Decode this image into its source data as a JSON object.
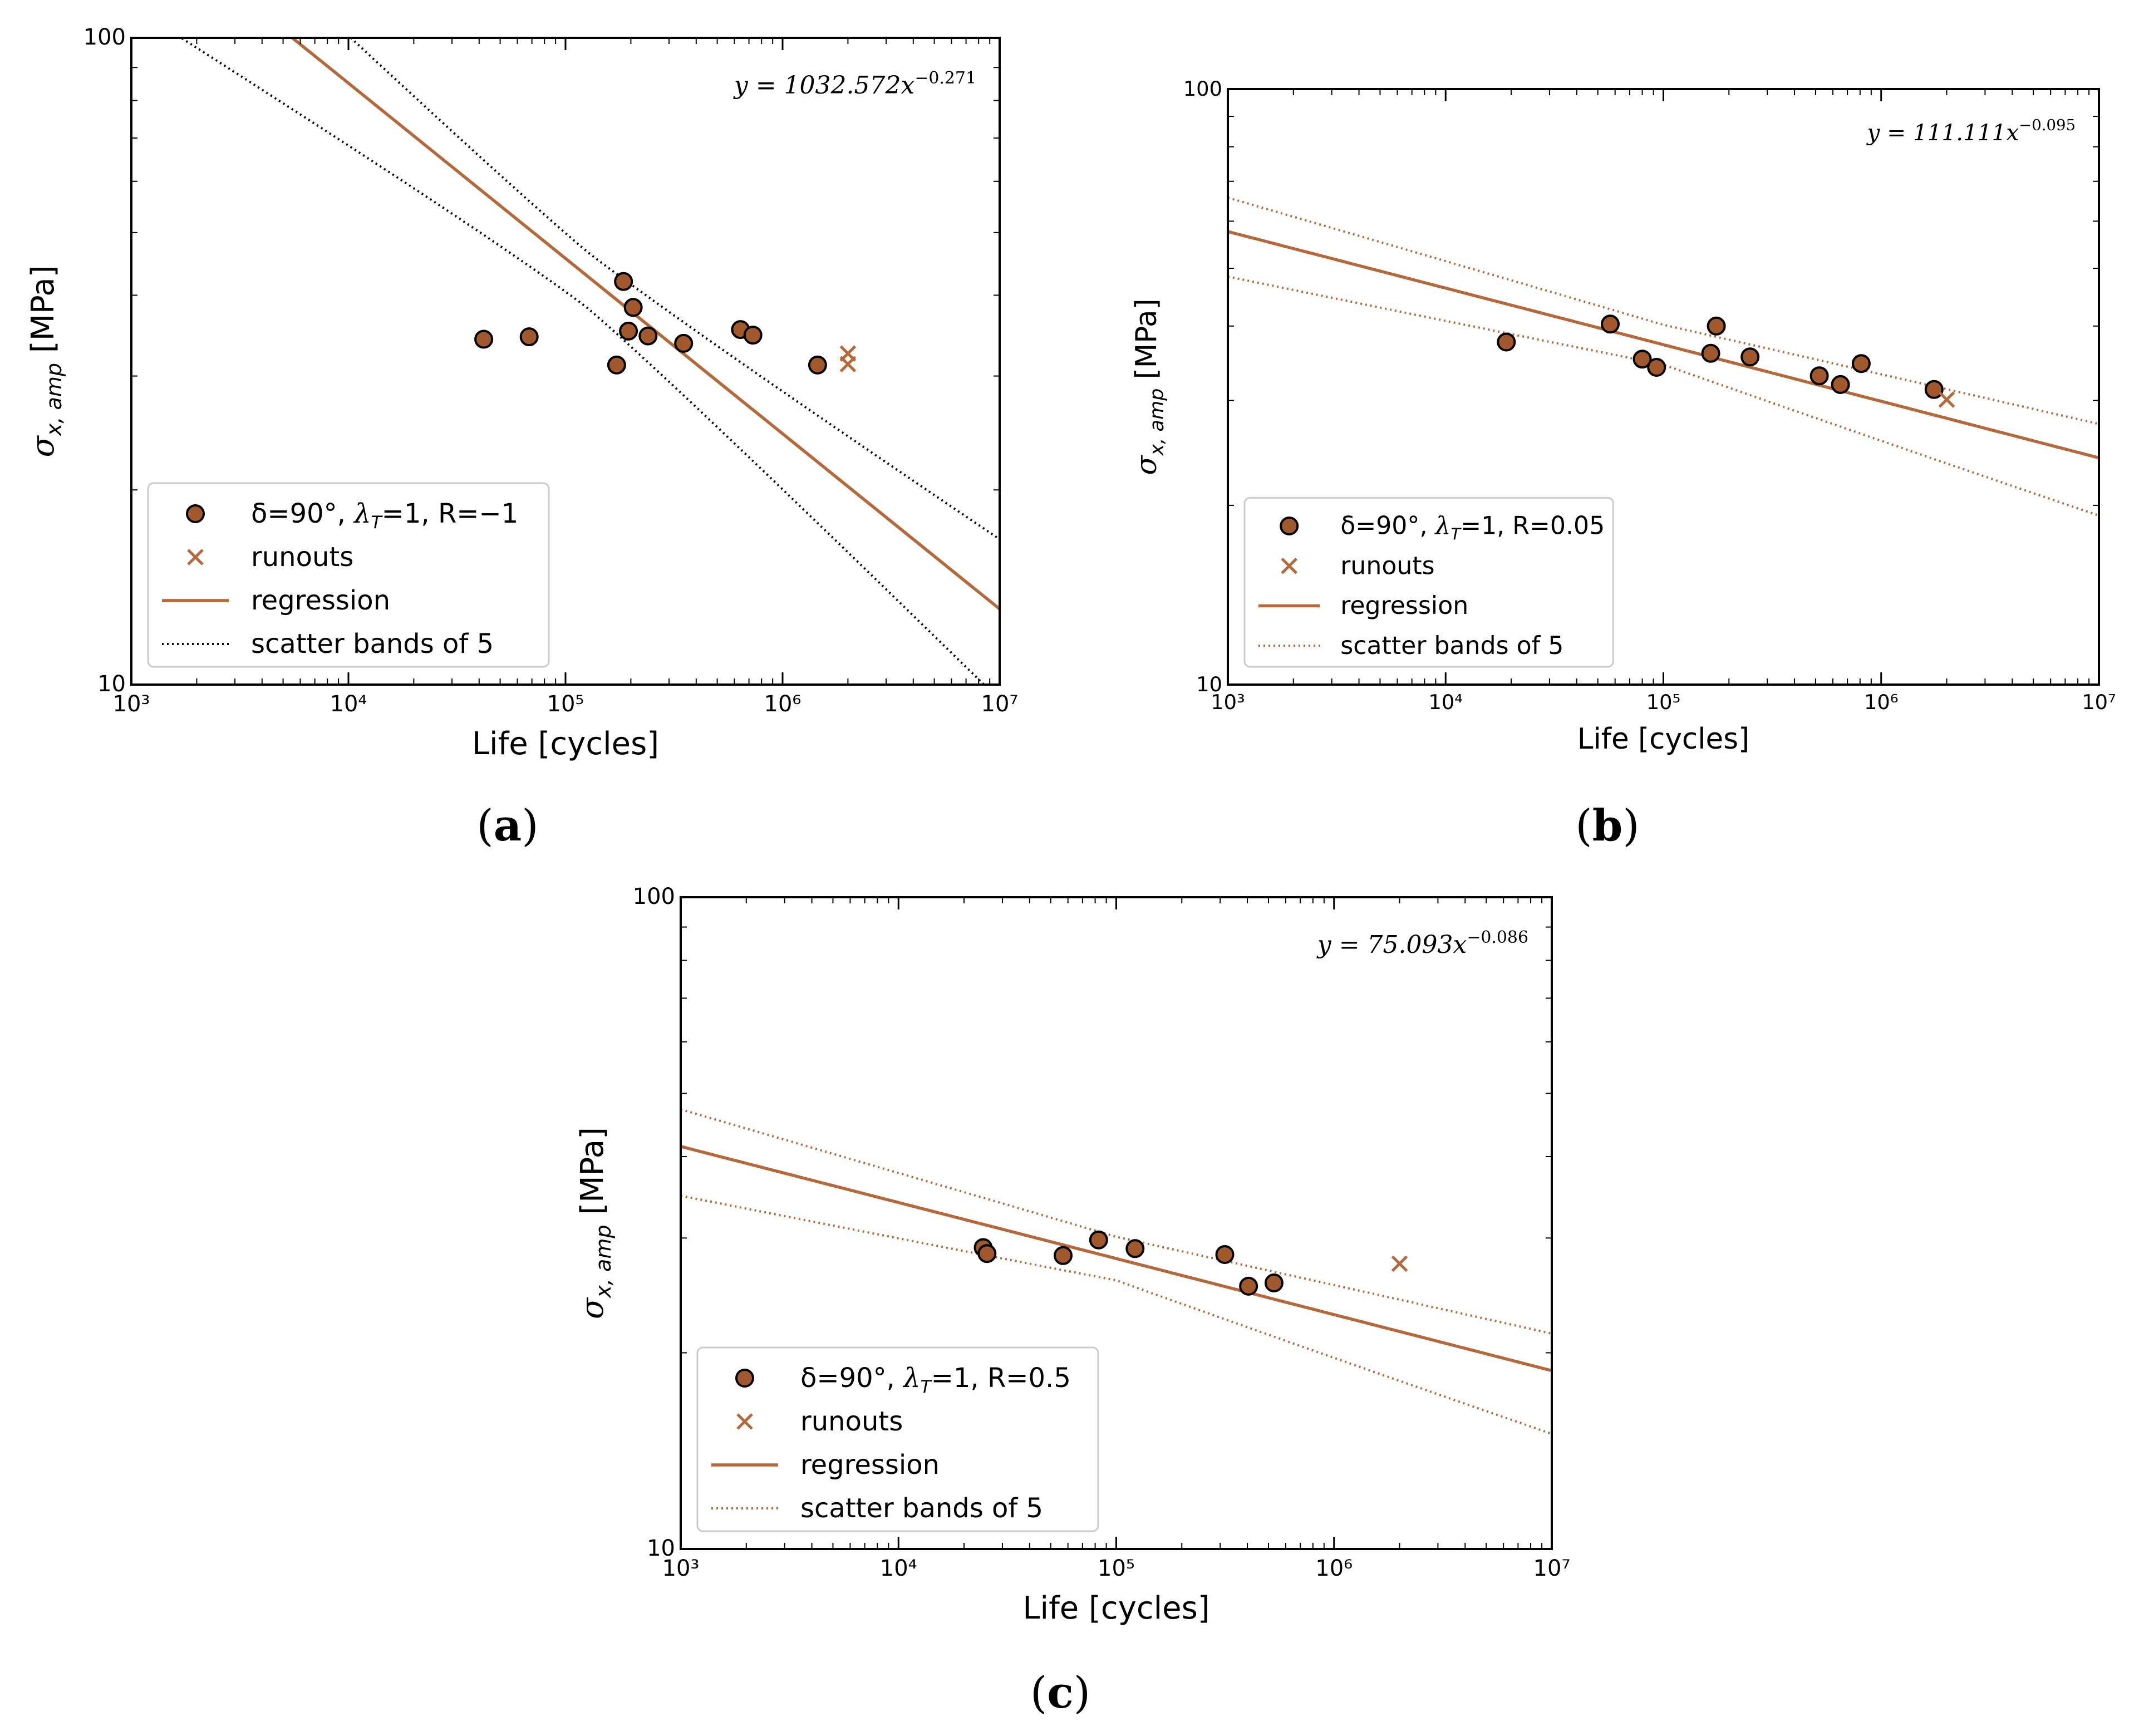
{
  "figure": {
    "panel_labels": [
      "(a)",
      "(b)",
      "(c)"
    ]
  },
  "colors": {
    "brown": "#b5693a",
    "brown_marker_fill": "#a0582c",
    "black": "#000000"
  },
  "chart_data": [
    {
      "type": "scatter",
      "id": "a",
      "xscale": "log",
      "yscale": "log",
      "xlim": [
        1000,
        10000000
      ],
      "ylim": [
        10,
        100
      ],
      "xlabel": "Life [cycles]",
      "ylabel": "σx, amp [MPa]",
      "ylabel_main": "σ",
      "ylabel_sub": "x, amp",
      "ylabel_unit": " [MPa]",
      "x_tick_labels": [
        "10³",
        "10⁴",
        "10⁵",
        "10⁶",
        "10⁷"
      ],
      "y_tick_labels": [
        "10",
        "100"
      ],
      "equation": {
        "lhs": "y = 1032.572x",
        "exp": "−0.271"
      },
      "regression": {
        "coef": 1032.572,
        "exp": -0.271
      },
      "band_factor": 5,
      "band_style": "black-dotted",
      "failures": [
        {
          "x": 42000,
          "y": 34.2
        },
        {
          "x": 68000,
          "y": 34.5
        },
        {
          "x": 172000,
          "y": 31.2
        },
        {
          "x": 185000,
          "y": 42.0
        },
        {
          "x": 195000,
          "y": 35.2
        },
        {
          "x": 205000,
          "y": 38.3
        },
        {
          "x": 240000,
          "y": 34.6
        },
        {
          "x": 350000,
          "y": 33.7
        },
        {
          "x": 640000,
          "y": 35.4
        },
        {
          "x": 730000,
          "y": 34.7
        },
        {
          "x": 1450000,
          "y": 31.2
        }
      ],
      "runouts": [
        {
          "x": 2000000,
          "y": 32.5
        },
        {
          "x": 2000000,
          "y": 31.3
        }
      ],
      "legend": [
        {
          "kind": "marker",
          "text": "δ=90°, λT=1, R=−1",
          "pre": "δ=90°, ",
          "lam": "λ",
          "sub": "T",
          "post": "=1, R=−1"
        },
        {
          "kind": "cross",
          "text": "runouts"
        },
        {
          "kind": "line",
          "text": "regression"
        },
        {
          "kind": "dotted",
          "text": "scatter bands of 5"
        }
      ]
    },
    {
      "type": "scatter",
      "id": "b",
      "xscale": "log",
      "yscale": "log",
      "xlim": [
        1000,
        10000000
      ],
      "ylim": [
        10,
        100
      ],
      "xlabel": "Life [cycles]",
      "ylabel": "σx, amp [MPa]",
      "ylabel_main": "σ",
      "ylabel_sub": "x, amp",
      "ylabel_unit": " [MPa]",
      "x_tick_labels": [
        "10³",
        "10⁴",
        "10⁵",
        "10⁶",
        "10⁷"
      ],
      "y_tick_labels": [
        "10",
        "100"
      ],
      "equation": {
        "lhs": "y = 111.111x",
        "exp": "−0.095"
      },
      "regression": {
        "coef": 111.111,
        "exp": -0.095
      },
      "band_factor": 5,
      "band_style": "brown-dotted",
      "failures": [
        {
          "x": 19000,
          "y": 37.6
        },
        {
          "x": 57000,
          "y": 40.3
        },
        {
          "x": 80000,
          "y": 35.2
        },
        {
          "x": 93000,
          "y": 34.1
        },
        {
          "x": 165000,
          "y": 36.0
        },
        {
          "x": 175000,
          "y": 40.0
        },
        {
          "x": 250000,
          "y": 35.5
        },
        {
          "x": 520000,
          "y": 33.0
        },
        {
          "x": 650000,
          "y": 31.9
        },
        {
          "x": 810000,
          "y": 34.6
        },
        {
          "x": 1750000,
          "y": 31.3
        }
      ],
      "runouts": [
        {
          "x": 2000000,
          "y": 30.1
        }
      ],
      "legend": [
        {
          "kind": "marker",
          "text": "δ=90°, λT=1, R=0.05",
          "pre": "δ=90°, ",
          "lam": "λ",
          "sub": "T",
          "post": "=1, R=0.05"
        },
        {
          "kind": "cross",
          "text": "runouts"
        },
        {
          "kind": "line",
          "text": "regression"
        },
        {
          "kind": "dotted",
          "text": "scatter bands of 5"
        }
      ]
    },
    {
      "type": "scatter",
      "id": "c",
      "xscale": "log",
      "yscale": "log",
      "xlim": [
        1000,
        10000000
      ],
      "ylim": [
        10,
        100
      ],
      "xlabel": "Life [cycles]",
      "ylabel": "σx, amp [MPa]",
      "ylabel_main": "σ",
      "ylabel_sub": "x, amp",
      "ylabel_unit": " [MPa]",
      "x_tick_labels": [
        "10³",
        "10⁴",
        "10⁵",
        "10⁶",
        "10⁷"
      ],
      "y_tick_labels": [
        "10",
        "100"
      ],
      "equation": {
        "lhs": "y = 75.093x",
        "exp": "−0.086"
      },
      "regression": {
        "coef": 75.093,
        "exp": -0.086
      },
      "band_factor": 5,
      "band_style": "brown-dotted",
      "failures": [
        {
          "x": 24500,
          "y": 29.0
        },
        {
          "x": 25500,
          "y": 28.4
        },
        {
          "x": 57000,
          "y": 28.2
        },
        {
          "x": 83000,
          "y": 29.8
        },
        {
          "x": 122000,
          "y": 28.9
        },
        {
          "x": 315000,
          "y": 28.3
        },
        {
          "x": 405000,
          "y": 25.3
        },
        {
          "x": 530000,
          "y": 25.6
        }
      ],
      "runouts": [
        {
          "x": 2000000,
          "y": 27.4
        }
      ],
      "legend": [
        {
          "kind": "marker",
          "text": "δ=90°, λT=1, R=0.5",
          "pre": "δ=90°, ",
          "lam": "λ",
          "sub": "T",
          "post": "=1, R=0.5"
        },
        {
          "kind": "cross",
          "text": "runouts"
        },
        {
          "kind": "line",
          "text": "regression"
        },
        {
          "kind": "dotted",
          "text": "scatter bands of 5"
        }
      ]
    }
  ]
}
